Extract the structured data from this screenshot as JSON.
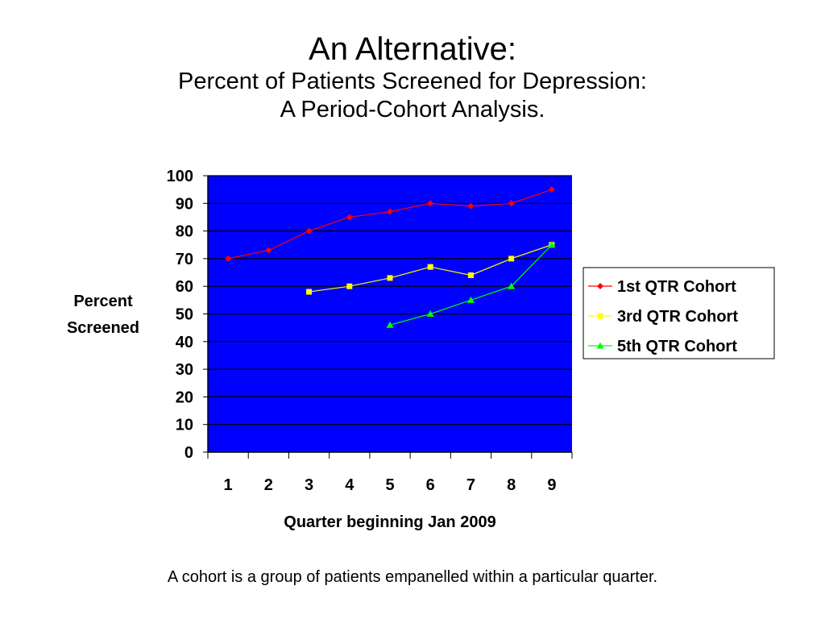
{
  "slide": {
    "title": "An Alternative:",
    "subtitle_line1": "Percent of Patients Screened for Depression:",
    "subtitle_line2": "A Period-Cohort Analysis.",
    "caption": "A cohort is a group of patients empanelled within a particular quarter."
  },
  "chart_data": {
    "type": "line",
    "xlabel": "Quarter beginning Jan 2009",
    "ylabel_line1": "Percent",
    "ylabel_line2": "Screened",
    "categories": [
      "1",
      "2",
      "3",
      "4",
      "5",
      "6",
      "7",
      "8",
      "9"
    ],
    "ylim": [
      0,
      100
    ],
    "yticks": [
      "0",
      "10",
      "20",
      "30",
      "40",
      "50",
      "60",
      "70",
      "80",
      "90",
      "100"
    ],
    "grid": true,
    "plot_background": "#0000ff",
    "legend_position": "right",
    "series": [
      {
        "name": "1st QTR Cohort",
        "color": "#ff0000",
        "marker": "diamond",
        "values": [
          70,
          73,
          80,
          85,
          87,
          90,
          89,
          90,
          95
        ]
      },
      {
        "name": "3rd QTR Cohort",
        "color": "#ffff00",
        "marker": "square",
        "values": [
          null,
          null,
          58,
          60,
          63,
          67,
          64,
          70,
          75
        ]
      },
      {
        "name": "5th QTR Cohort",
        "color": "#00ff00",
        "marker": "triangle",
        "values": [
          null,
          null,
          null,
          null,
          46,
          50,
          55,
          60,
          75
        ]
      }
    ]
  }
}
